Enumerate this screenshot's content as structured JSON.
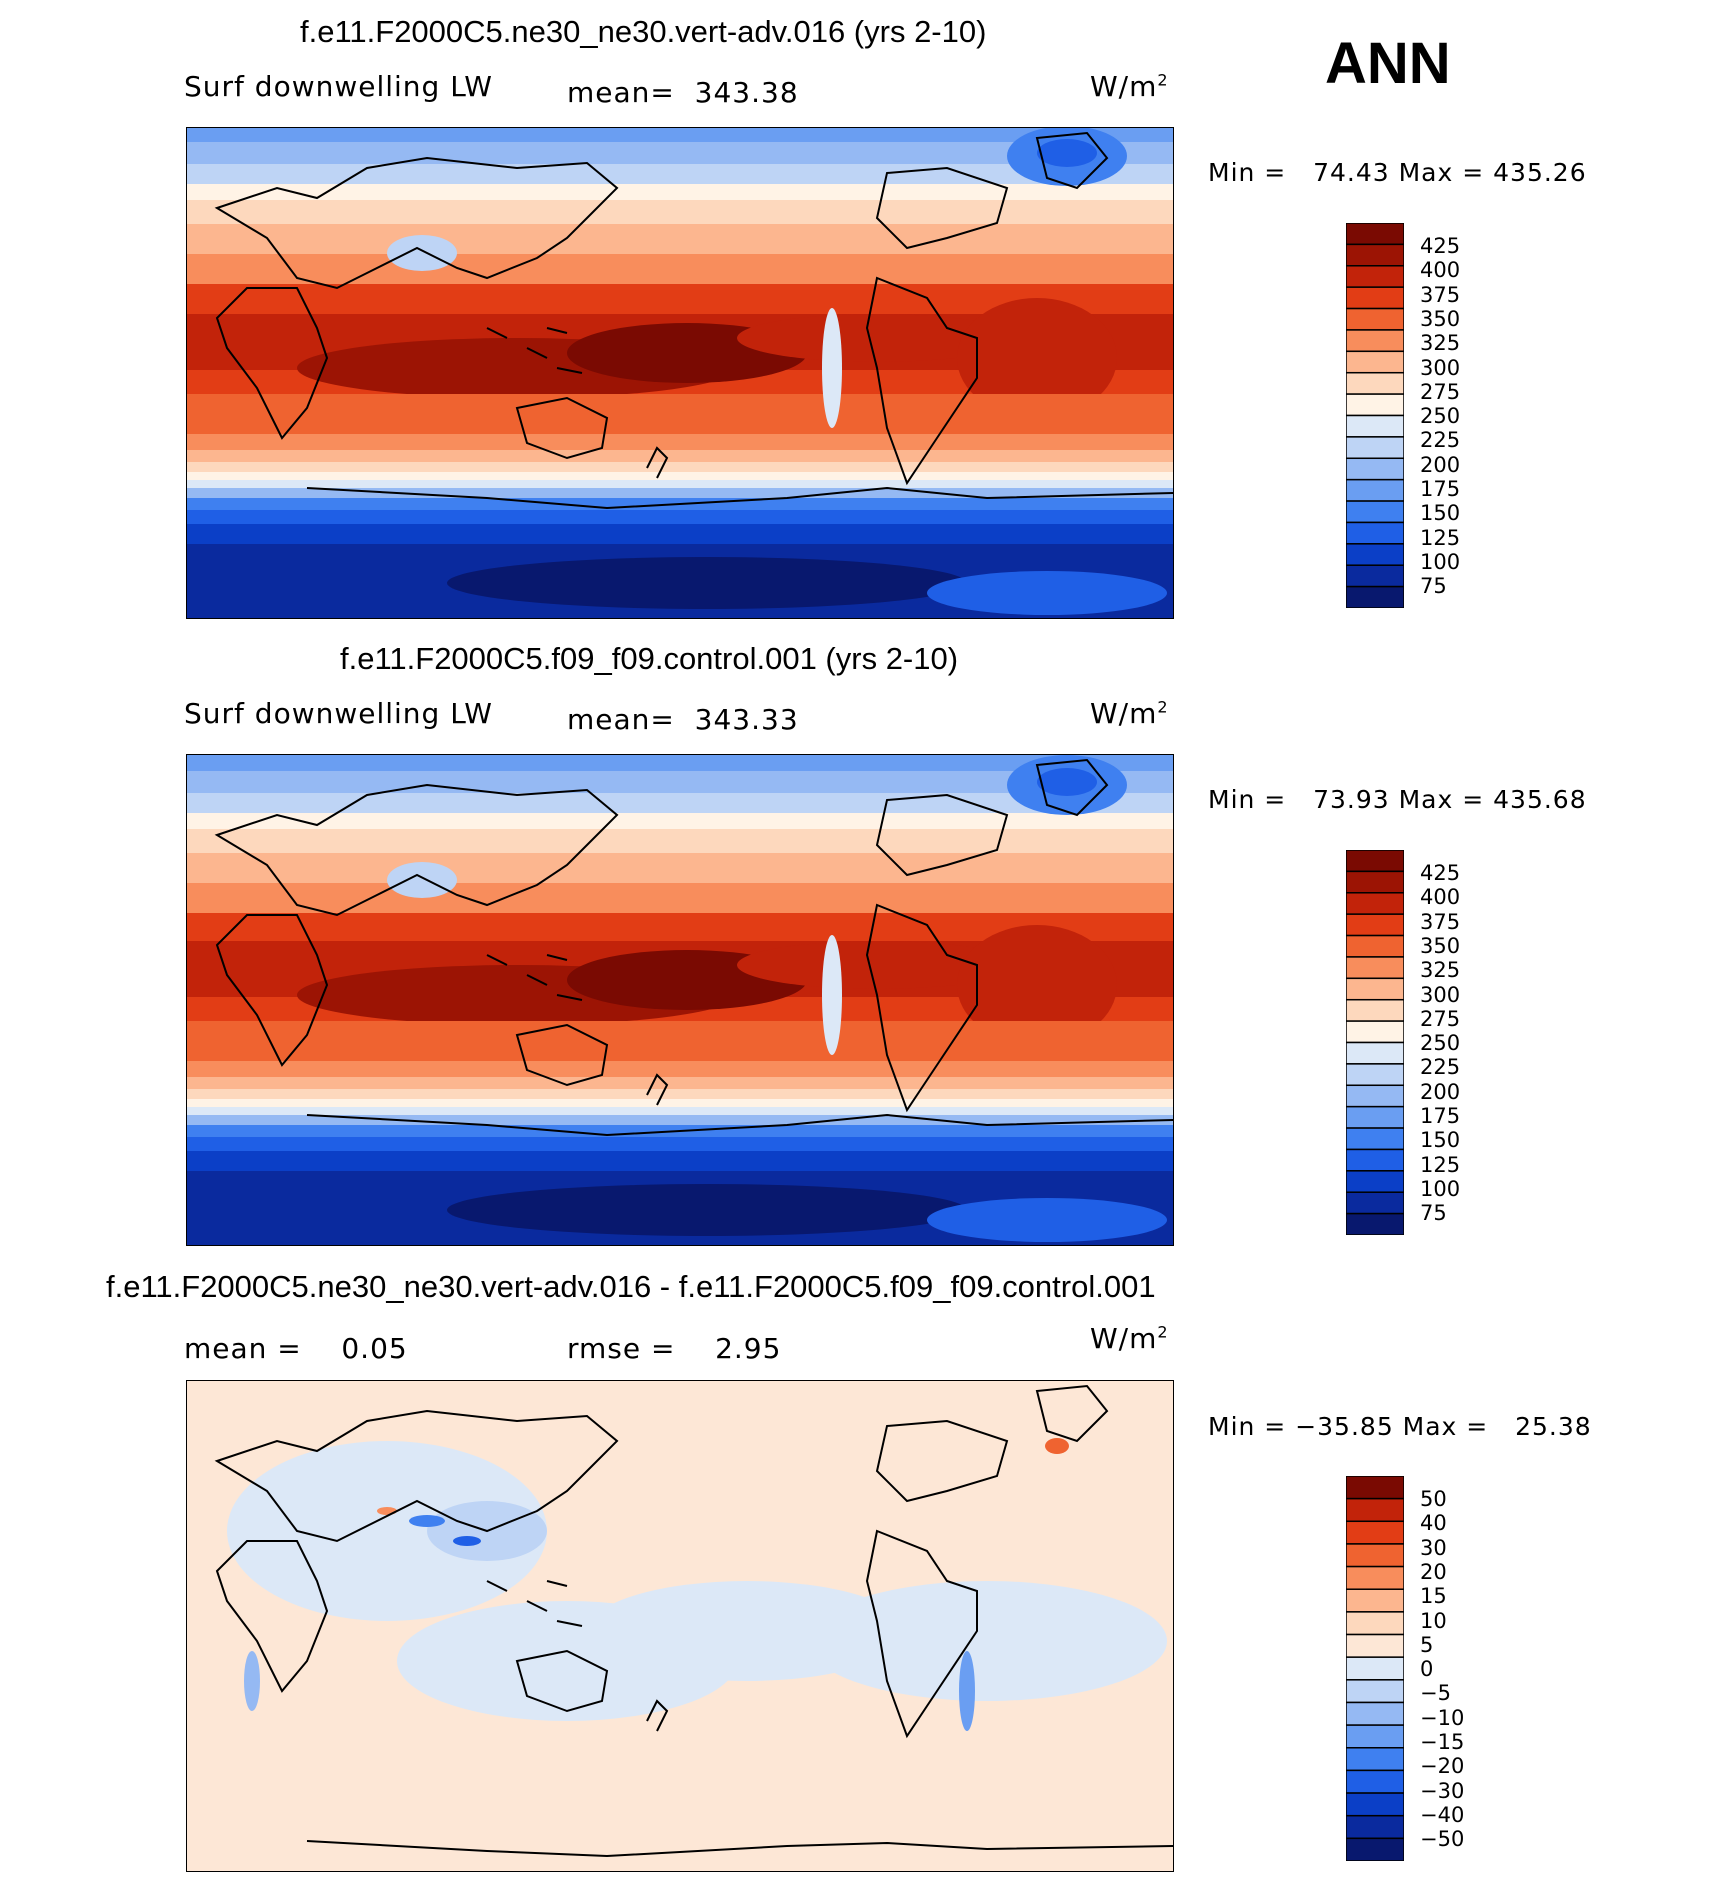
{
  "season": "ANN",
  "colors": {
    "full_scale": [
      "#08186e",
      "#0a2a9e",
      "#0b3fc7",
      "#1f5fe6",
      "#3f80f0",
      "#6a9ef2",
      "#95b9f3",
      "#bed4f5",
      "#dce8f7",
      "#fff3e6",
      "#fdd8bd",
      "#fcb68f",
      "#f88d5c",
      "#ef6330",
      "#e23d15",
      "#c2230a",
      "#9c1404",
      "#7a0a02"
    ],
    "diff_scale": [
      "#08186e",
      "#0a2a9e",
      "#0b3fc7",
      "#1f5fe6",
      "#3f80f0",
      "#6a9ef2",
      "#95b9f3",
      "#bed4f5",
      "#dce8f7",
      "#fde7d6",
      "#fdd8bd",
      "#fcb68f",
      "#f88d5c",
      "#ef6330",
      "#e23d15",
      "#c2230a",
      "#7a0a02"
    ]
  },
  "panels": [
    {
      "id": "test",
      "title": "f.e11.F2000C5.ne30_ne30.vert-adv.016 (yrs 2-10)",
      "variable": "Surf downwelling LW",
      "stat_text": "mean=  343.38",
      "units": "W/m",
      "units_exp": "2",
      "minmax": "Min =   74.43 Max = 435.26",
      "colorbar_labels": [
        "425",
        "400",
        "375",
        "350",
        "325",
        "300",
        "275",
        "250",
        "225",
        "200",
        "175",
        "150",
        "125",
        "100",
        "75"
      ]
    },
    {
      "id": "control",
      "title": "f.e11.F2000C5.f09_f09.control.001 (yrs 2-10)",
      "variable": "Surf downwelling LW",
      "stat_text": "mean=  343.33",
      "units": "W/m",
      "units_exp": "2",
      "minmax": "Min =   73.93 Max = 435.68",
      "colorbar_labels": [
        "425",
        "400",
        "375",
        "350",
        "325",
        "300",
        "275",
        "250",
        "225",
        "200",
        "175",
        "150",
        "125",
        "100",
        "75"
      ]
    },
    {
      "id": "difference",
      "title": "f.e11.F2000C5.ne30_ne30.vert-adv.016 - f.e11.F2000C5.f09_f09.control.001",
      "mean_text": "mean =    0.05",
      "rmse_text": "rmse =    2.95",
      "units": "W/m",
      "units_exp": "2",
      "minmax": "Min = −35.85 Max =   25.38",
      "colorbar_labels": [
        "50",
        "40",
        "30",
        "20",
        "15",
        "10",
        "5",
        "0",
        "−5",
        "−10",
        "−15",
        "−20",
        "−30",
        "−40",
        "−50"
      ]
    }
  ],
  "chart_data": [
    {
      "type": "heatmap",
      "title": "f.e11.F2000C5.ne30_ne30.vert-adv.016 (yrs 2-10)",
      "variable": "Surf downwelling LW",
      "units": "W/m2",
      "mean": 343.38,
      "min": 74.43,
      "max": 435.26,
      "contour_levels": [
        75,
        100,
        125,
        150,
        175,
        200,
        225,
        250,
        275,
        300,
        325,
        350,
        375,
        400,
        425
      ],
      "projection": "global cylindrical, Pacific-centered"
    },
    {
      "type": "heatmap",
      "title": "f.e11.F2000C5.f09_f09.control.001 (yrs 2-10)",
      "variable": "Surf downwelling LW",
      "units": "W/m2",
      "mean": 343.33,
      "min": 73.93,
      "max": 435.68,
      "contour_levels": [
        75,
        100,
        125,
        150,
        175,
        200,
        225,
        250,
        275,
        300,
        325,
        350,
        375,
        400,
        425
      ],
      "projection": "global cylindrical, Pacific-centered"
    },
    {
      "type": "heatmap",
      "title": "f.e11.F2000C5.ne30_ne30.vert-adv.016 - f.e11.F2000C5.f09_f09.control.001",
      "units": "W/m2",
      "mean": 0.05,
      "rmse": 2.95,
      "min": -35.85,
      "max": 25.38,
      "contour_levels": [
        -50,
        -40,
        -30,
        -20,
        -15,
        -10,
        -5,
        0,
        5,
        10,
        15,
        20,
        30,
        40,
        50
      ]
    }
  ]
}
